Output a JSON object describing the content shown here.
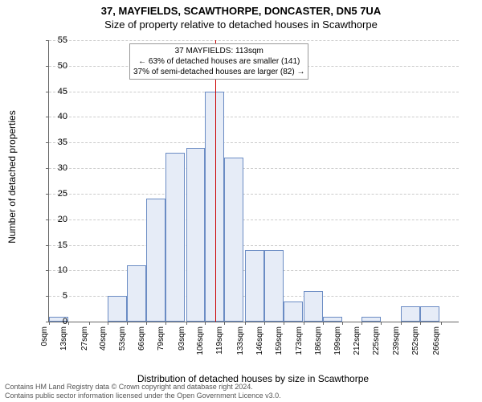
{
  "header": {
    "title": "37, MAYFIELDS, SCAWTHORPE, DONCASTER, DN5 7UA",
    "subtitle": "Size of property relative to detached houses in Scawthorpe"
  },
  "chart": {
    "type": "histogram",
    "ylabel": "Number of detached properties",
    "xlabel": "Distribution of detached houses by size in Scawthorpe",
    "ylim": [
      0,
      55
    ],
    "ytick_step": 5,
    "background_color": "#ffffff",
    "grid_color": "#cccccc",
    "bar_fill": "#e6ecf7",
    "bar_stroke": "#6b8cc4",
    "xticks": [
      "0sqm",
      "13sqm",
      "27sqm",
      "40sqm",
      "53sqm",
      "66sqm",
      "79sqm",
      "93sqm",
      "106sqm",
      "119sqm",
      "133sqm",
      "146sqm",
      "159sqm",
      "173sqm",
      "186sqm",
      "199sqm",
      "212sqm",
      "225sqm",
      "239sqm",
      "252sqm",
      "266sqm"
    ],
    "bin_width_sqm": 13,
    "x_max_sqm": 278,
    "bars": [
      {
        "bin_start": 0,
        "count": 1
      },
      {
        "bin_start": 40,
        "count": 5
      },
      {
        "bin_start": 53,
        "count": 11
      },
      {
        "bin_start": 66,
        "count": 24
      },
      {
        "bin_start": 79,
        "count": 33
      },
      {
        "bin_start": 93,
        "count": 34
      },
      {
        "bin_start": 106,
        "count": 45
      },
      {
        "bin_start": 119,
        "count": 32
      },
      {
        "bin_start": 133,
        "count": 14
      },
      {
        "bin_start": 146,
        "count": 14
      },
      {
        "bin_start": 159,
        "count": 4
      },
      {
        "bin_start": 173,
        "count": 6
      },
      {
        "bin_start": 186,
        "count": 1
      },
      {
        "bin_start": 212,
        "count": 1
      },
      {
        "bin_start": 239,
        "count": 3
      },
      {
        "bin_start": 252,
        "count": 3
      }
    ],
    "marker": {
      "sqm": 113,
      "color": "#cc0000"
    },
    "annotation": {
      "line1": "37 MAYFIELDS: 113sqm",
      "line2": "← 63% of detached houses are smaller (141)",
      "line3": "37% of semi-detached houses are larger (82) →"
    }
  },
  "footer": {
    "line1": "Contains HM Land Registry data © Crown copyright and database right 2024.",
    "line2": "Contains public sector information licensed under the Open Government Licence v3.0."
  }
}
